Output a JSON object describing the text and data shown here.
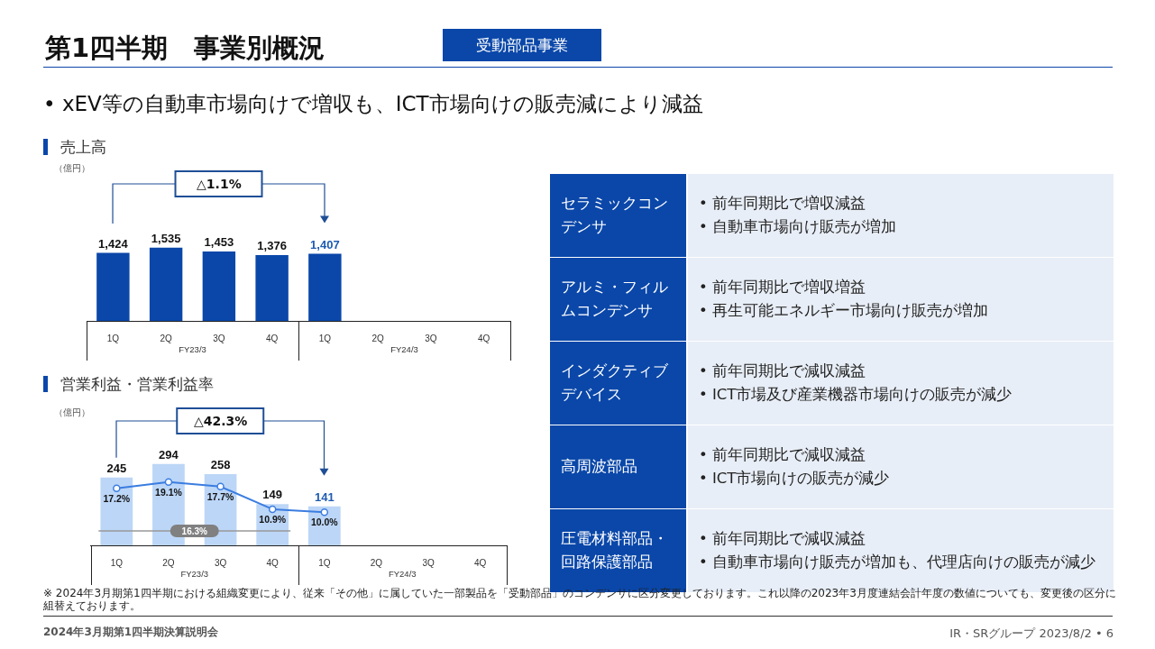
{
  "chart_data": [
    {
      "type": "other",
      "title": "第1四半期　事業別概況",
      "subtitle": "受動部品事業",
      "annotations": [
        "• xEV等の自動車市場向けで増収も、ICT市場向けの販売減により減益",
        "※ 2024年3月期第1四半期における組織変更により、従来「その他」に属していた一部製品を「受動部品」のコンデンサに区分変更しております。これ以降の2023年3月度連結会計年度の数値についても、変更後の区分に組替えております。",
        "2024年3月期第1四半期決算説明会",
        "IR・SRグループ  2023/8/2 • 6"
      ]
    },
    {
      "type": "bar",
      "title": "売上高",
      "ylabel": "（億円）",
      "categories": [
        "1Q",
        "2Q",
        "3Q",
        "4Q",
        "1Q",
        "2Q",
        "3Q",
        "4Q"
      ],
      "series": [
        {
          "type": "bar",
          "color": "#0a47a9",
          "values": [
            1424,
            1535,
            1453,
            1376,
            1407,
            null,
            null,
            null
          ],
          "value_labels": [
            "1,424",
            "1,535",
            "1,453",
            "1,376",
            "1,407",
            null,
            null,
            null
          ]
        }
      ],
      "annotations": [
        "△1.1%",
        "FY23/3",
        "FY24/3"
      ]
    },
    {
      "type": "bar",
      "title": "営業利益・営業利益率",
      "ylabel": "（億円）",
      "categories": [
        "1Q",
        "2Q",
        "3Q",
        "4Q",
        "1Q",
        "2Q",
        "3Q",
        "4Q"
      ],
      "series": [
        {
          "type": "bar",
          "color": "#bcd6f7",
          "values": [
            245,
            294,
            258,
            149,
            141,
            null,
            null,
            null
          ],
          "value_labels": [
            "245",
            "294",
            "258",
            "149",
            "141",
            null,
            null,
            null
          ]
        },
        {
          "type": "line",
          "axis": "y2",
          "color": "#3b7de0",
          "marker": "circle",
          "values": [
            17.2,
            19.1,
            17.7,
            10.9,
            10.0,
            null,
            null,
            null
          ],
          "value_labels": [
            "17.2%",
            "19.1%",
            "17.7%",
            "10.9%",
            "10.0%",
            null,
            null,
            null
          ]
        }
      ],
      "annotations": [
        "△42.3%",
        "16.3%",
        "FY23/3",
        "FY24/3"
      ]
    },
    {
      "type": "other",
      "categories": [
        "セラミックコンデンサ",
        "アルミ・フィルムコンデンサ",
        "インダクティブデバイス",
        "高周波部品",
        "圧電材料部品・回路保護部品"
      ],
      "cell_labels": [
        [
          "• 前年同期比で増収減益",
          "• 自動車市場向け販売が増加"
        ],
        [
          "• 前年同期比で増収増益",
          "• 再生可能エネルギー市場向け販売が増加"
        ],
        [
          "• 前年同期比で減収減益",
          "• ICT市場及び産業機器市場向けの販売が減少"
        ],
        [
          "• 前年同期比で減収減益",
          "• ICT市場向けの販売が減少"
        ],
        [
          "• 前年同期比で減収減益",
          "• 自動車市場向け販売が増加も、代理店向けの販売が減少"
        ]
      ]
    }
  ]
}
